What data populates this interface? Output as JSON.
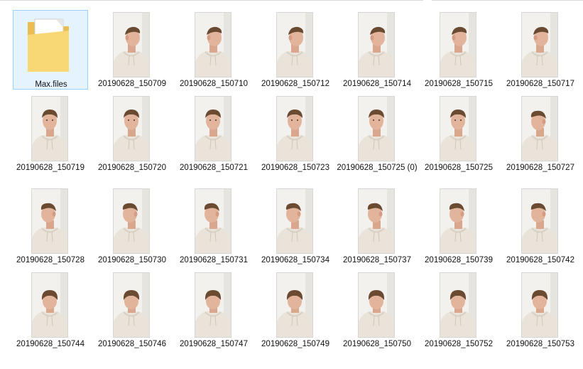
{
  "items": [
    {
      "name": "Max.files",
      "type": "folder",
      "selected": true
    },
    {
      "name": "20190628_150709",
      "type": "photo",
      "pose": "right"
    },
    {
      "name": "20190628_150710",
      "type": "photo",
      "pose": "right"
    },
    {
      "name": "20190628_150712",
      "type": "photo",
      "pose": "right"
    },
    {
      "name": "20190628_150714",
      "type": "photo",
      "pose": "right"
    },
    {
      "name": "20190628_150715",
      "type": "photo",
      "pose": "right"
    },
    {
      "name": "20190628_150717",
      "type": "photo",
      "pose": "right"
    },
    {
      "name": "20190628_150719",
      "type": "photo",
      "pose": "front"
    },
    {
      "name": "20190628_150720",
      "type": "photo",
      "pose": "front"
    },
    {
      "name": "20190628_150721",
      "type": "photo",
      "pose": "front"
    },
    {
      "name": "20190628_150723",
      "type": "photo",
      "pose": "front"
    },
    {
      "name": "20190628_150725 (0)",
      "type": "photo",
      "pose": "front"
    },
    {
      "name": "20190628_150725",
      "type": "photo",
      "pose": "front"
    },
    {
      "name": "20190628_150727",
      "type": "photo",
      "pose": "left"
    },
    {
      "name": "20190628_150728",
      "type": "photo",
      "pose": "left"
    },
    {
      "name": "20190628_150730",
      "type": "photo",
      "pose": "left"
    },
    {
      "name": "20190628_150731",
      "type": "photo",
      "pose": "left"
    },
    {
      "name": "20190628_150734",
      "type": "photo",
      "pose": "left"
    },
    {
      "name": "20190628_150737",
      "type": "photo",
      "pose": "left"
    },
    {
      "name": "20190628_150739",
      "type": "photo",
      "pose": "left"
    },
    {
      "name": "20190628_150742",
      "type": "photo",
      "pose": "left"
    },
    {
      "name": "20190628_150744",
      "type": "photo",
      "pose": "down"
    },
    {
      "name": "20190628_150746",
      "type": "photo",
      "pose": "down"
    },
    {
      "name": "20190628_150747",
      "type": "photo",
      "pose": "down"
    },
    {
      "name": "20190628_150749",
      "type": "photo",
      "pose": "down"
    },
    {
      "name": "20190628_150750",
      "type": "photo",
      "pose": "down"
    },
    {
      "name": "20190628_150752",
      "type": "photo",
      "pose": "down"
    },
    {
      "name": "20190628_150753",
      "type": "photo",
      "pose": "down"
    }
  ],
  "colors": {
    "selection_bg": "#e5f3ff",
    "selection_border": "#99d1ff",
    "folder": "#f8d775",
    "hoodie": "#e9e3da",
    "skin": "#e3b49c",
    "hair": "#6b4a32",
    "wall": "#f2f1ee"
  }
}
